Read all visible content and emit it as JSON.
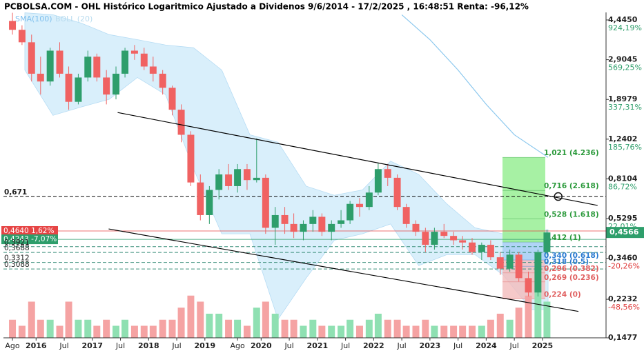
{
  "chart_data": {
    "type": "candlestick",
    "title": "PCBOLSA.COM - OHL Histórico Logaritmico Ajustado a Dividenos 9/6/2014 - 17/2/2025 , 16:48:51 Renta: -96,12%",
    "legend": [
      "SMA(100)",
      "BOLL (20)"
    ],
    "log_scale": true,
    "xlim": [
      2015.42,
      2026.13
    ],
    "ylim": [
      0.1477,
      4.82
    ],
    "xticks": [
      {
        "value": 2015.58,
        "label": "Ago"
      },
      {
        "value": 2016.0,
        "label": "2016"
      },
      {
        "value": 2016.5,
        "label": "Jul"
      },
      {
        "value": 2017.0,
        "label": "2017"
      },
      {
        "value": 2017.5,
        "label": "Jul"
      },
      {
        "value": 2018.0,
        "label": "2018"
      },
      {
        "value": 2018.5,
        "label": "Jul"
      },
      {
        "value": 2019.0,
        "label": "2019"
      },
      {
        "value": 2019.58,
        "label": "Ago"
      },
      {
        "value": 2020.0,
        "label": "2020"
      },
      {
        "value": 2020.5,
        "label": "Jul"
      },
      {
        "value": 2021.0,
        "label": "2021"
      },
      {
        "value": 2021.5,
        "label": "Jul"
      },
      {
        "value": 2022.0,
        "label": "2022"
      },
      {
        "value": 2022.5,
        "label": "Jul"
      },
      {
        "value": 2023.0,
        "label": "2023"
      },
      {
        "value": 2023.5,
        "label": "Jul"
      },
      {
        "value": 2024.0,
        "label": "2024"
      },
      {
        "value": 2024.5,
        "label": "Jul"
      },
      {
        "value": 2025.0,
        "label": "2025"
      }
    ],
    "yticks": [
      {
        "value": 4.445,
        "label": "4,4450",
        "change": "924,19%"
      },
      {
        "value": 2.9045,
        "label": "2,9045",
        "change": "569,25%"
      },
      {
        "value": 1.8979,
        "label": "1,8979",
        "change": "337,31%"
      },
      {
        "value": 1.2402,
        "label": "1,2402",
        "change": "185,76%"
      },
      {
        "value": 0.8104,
        "label": "0,8104",
        "change": "86,72%"
      },
      {
        "value": 0.5295,
        "label": "0,5295",
        "change": "22,01%"
      },
      {
        "value": 0.346,
        "label": "0,3460",
        "change": "-20,26%"
      },
      {
        "value": 0.2232,
        "label": "0,2232",
        "change": "-48,56%"
      },
      {
        "value": 0.1477,
        "label": "0,1477"
      }
    ],
    "x": [
      2015.58,
      2015.75,
      2015.92,
      2016.08,
      2016.25,
      2016.42,
      2016.58,
      2016.75,
      2016.92,
      2017.08,
      2017.25,
      2017.42,
      2017.58,
      2017.75,
      2017.92,
      2018.08,
      2018.25,
      2018.42,
      2018.58,
      2018.75,
      2018.92,
      2019.08,
      2019.25,
      2019.42,
      2019.58,
      2019.75,
      2019.92,
      2020.08,
      2020.25,
      2020.42,
      2020.58,
      2020.75,
      2020.92,
      2021.08,
      2021.25,
      2021.42,
      2021.58,
      2021.75,
      2021.92,
      2022.08,
      2022.25,
      2022.42,
      2022.58,
      2022.75,
      2022.92,
      2023.08,
      2023.25,
      2023.42,
      2023.58,
      2023.75,
      2023.92,
      2024.08,
      2024.25,
      2024.42,
      2024.58,
      2024.75,
      2024.92,
      2025.08
    ],
    "open": [
      4.4,
      4.0,
      3.5,
      2.5,
      2.3,
      3.2,
      2.5,
      1.85,
      2.4,
      3.0,
      2.4,
      2.0,
      2.5,
      3.2,
      3.1,
      2.7,
      2.5,
      2.15,
      1.7,
      1.3,
      0.78,
      0.55,
      0.72,
      0.85,
      0.75,
      0.9,
      0.8,
      0.82,
      0.48,
      0.55,
      0.5,
      0.46,
      0.5,
      0.54,
      0.46,
      0.5,
      0.52,
      0.62,
      0.6,
      0.7,
      0.9,
      0.82,
      0.6,
      0.5,
      0.46,
      0.4,
      0.46,
      0.44,
      0.42,
      0.41,
      0.37,
      0.4,
      0.35,
      0.31,
      0.36,
      0.28,
      0.24,
      0.37
    ],
    "high": [
      4.8,
      4.2,
      3.8,
      3.0,
      3.3,
      3.5,
      2.7,
      2.5,
      3.2,
      3.1,
      2.6,
      2.7,
      3.3,
      3.4,
      3.3,
      3.0,
      2.6,
      2.2,
      1.8,
      1.35,
      0.85,
      0.75,
      0.9,
      0.95,
      0.95,
      0.95,
      1.25,
      0.85,
      0.6,
      0.6,
      0.56,
      0.52,
      0.58,
      0.56,
      0.52,
      0.58,
      0.64,
      0.66,
      0.75,
      0.96,
      0.95,
      0.85,
      0.62,
      0.52,
      0.48,
      0.48,
      0.5,
      0.46,
      0.44,
      0.43,
      0.41,
      0.42,
      0.37,
      0.38,
      0.37,
      0.3,
      0.38,
      0.47
    ],
    "low": [
      3.8,
      3.4,
      2.3,
      2.0,
      2.2,
      2.4,
      1.7,
      1.8,
      2.3,
      2.3,
      1.8,
      1.9,
      2.4,
      2.9,
      2.6,
      2.3,
      2.0,
      1.6,
      1.2,
      0.75,
      0.52,
      0.5,
      0.65,
      0.72,
      0.7,
      0.72,
      0.78,
      0.45,
      0.4,
      0.45,
      0.43,
      0.42,
      0.46,
      0.44,
      0.42,
      0.48,
      0.5,
      0.54,
      0.58,
      0.68,
      0.75,
      0.58,
      0.48,
      0.44,
      0.37,
      0.38,
      0.43,
      0.4,
      0.38,
      0.36,
      0.34,
      0.34,
      0.29,
      0.3,
      0.27,
      0.23,
      0.23,
      0.36
    ],
    "close": [
      4.0,
      3.5,
      2.5,
      2.3,
      3.2,
      2.5,
      1.85,
      2.4,
      3.0,
      2.4,
      2.0,
      2.5,
      3.2,
      3.1,
      2.7,
      2.5,
      2.15,
      1.7,
      1.3,
      0.78,
      0.55,
      0.72,
      0.85,
      0.75,
      0.9,
      0.8,
      0.82,
      0.48,
      0.55,
      0.5,
      0.46,
      0.5,
      0.54,
      0.46,
      0.5,
      0.52,
      0.62,
      0.6,
      0.7,
      0.9,
      0.82,
      0.6,
      0.5,
      0.46,
      0.4,
      0.46,
      0.44,
      0.42,
      0.41,
      0.37,
      0.4,
      0.35,
      0.31,
      0.36,
      0.28,
      0.24,
      0.37,
      0.4566
    ],
    "volume": [
      3,
      2,
      6,
      3,
      3,
      2,
      6,
      3,
      3,
      2,
      3,
      2,
      3,
      2,
      2,
      2,
      3,
      3,
      5,
      7,
      6,
      4,
      4,
      3,
      3,
      2,
      5,
      6,
      4,
      3,
      3,
      2,
      3,
      2,
      2,
      2,
      3,
      2,
      3,
      4,
      3,
      3,
      2,
      2,
      3,
      2,
      2,
      2,
      2,
      2,
      2,
      3,
      4,
      3,
      5,
      7,
      8,
      6
    ],
    "colors": {
      "up": "#2e9e6b",
      "down": "#f06262",
      "volume_up": "#8fe0b2",
      "volume_down": "#f5a3a3"
    },
    "bollinger": {
      "color": "#d9effb",
      "x": [
        2015.8,
        2016.3,
        2016.8,
        2017.3,
        2017.8,
        2018.3,
        2018.8,
        2019.3,
        2019.8,
        2020.3,
        2020.8,
        2021.3,
        2021.8,
        2022.3,
        2022.8,
        2023.3,
        2023.8,
        2024.3,
        2024.8,
        2025.1
      ],
      "upper": [
        4.8,
        4.7,
        4.3,
        3.8,
        3.6,
        3.4,
        3.3,
        2.6,
        1.3,
        1.2,
        0.75,
        0.68,
        0.72,
        0.98,
        0.85,
        0.62,
        0.48,
        0.45,
        0.46,
        0.47
      ],
      "lower": [
        2.6,
        1.6,
        1.75,
        1.9,
        2.4,
        2.0,
        0.9,
        0.45,
        0.45,
        0.18,
        0.28,
        0.42,
        0.45,
        0.5,
        0.32,
        0.36,
        0.36,
        0.29,
        0.2,
        0.2
      ]
    },
    "sma": {
      "color": "#8cc8ee",
      "x": [
        2022.5,
        2023.0,
        2023.5,
        2024.0,
        2024.5,
        2025.1
      ],
      "values": [
        4.7,
        3.6,
        2.6,
        1.8,
        1.3,
        1.02
      ]
    },
    "trend_lines": [
      {
        "x": [
          2017.45,
          2025.98
        ],
        "values": [
          1.65,
          0.61
        ]
      },
      {
        "x": [
          2017.29,
          2025.64
        ],
        "values": [
          0.474,
          0.196
        ]
      }
    ],
    "levels": [
      {
        "value": 0.671,
        "label": "0,671",
        "color": "#000000",
        "style": "dash"
      },
      {
        "value": 0.464,
        "label": "0,4640 1,62%",
        "color": "#e64545",
        "style": "solid",
        "box": true
      },
      {
        "value": 0.4243,
        "label": "0,4243 -7,07%",
        "color": "#2e9e6b",
        "style": "solid",
        "box": true
      },
      {
        "value": 0.3921,
        "label": "0,3921",
        "color": "#3a8f7a",
        "style": "dash"
      },
      {
        "value": 0.3688,
        "label": "0,3688",
        "color": "#3a8f7a",
        "style": "dash"
      },
      {
        "value": 0.3312,
        "label": "0,3312",
        "color": "#3a8f7a",
        "style": "dash"
      },
      {
        "value": 0.3088,
        "label": "0,3088",
        "color": "#3a8f7a",
        "style": "dash"
      }
    ],
    "marker": {
      "x": 2025.28,
      "value": 0.671
    },
    "fib_box_x": [
      2024.29,
      2025.05
    ],
    "fib_levels": [
      {
        "value": 1.021,
        "label": "1,021 (4.236)",
        "color": "#2c9a3c"
      },
      {
        "value": 0.716,
        "label": "0,716 (2.618)",
        "color": "#2c9a3c"
      },
      {
        "value": 0.528,
        "label": "0,528 (1.618)",
        "color": "#2c9a3c"
      },
      {
        "value": 0.412,
        "label": "0,412 (1)",
        "color": "#2c9a3c"
      },
      {
        "value": 0.34,
        "label": "0,340 (0.618)",
        "color": "#2a7bd0"
      },
      {
        "value": 0.318,
        "label": "0,318 (0.5)",
        "color": "#2a7bd0"
      },
      {
        "value": 0.296,
        "label": "0,296 (0.382)",
        "color": "#e06060"
      },
      {
        "value": 0.269,
        "label": "0,269 (0.236)",
        "color": "#e06060"
      },
      {
        "value": 0.224,
        "label": "0,224 (0)",
        "color": "#e06060"
      }
    ],
    "last_price": {
      "value": 0.4566,
      "label": "0,4566",
      "color": "#2e9e6b"
    }
  }
}
